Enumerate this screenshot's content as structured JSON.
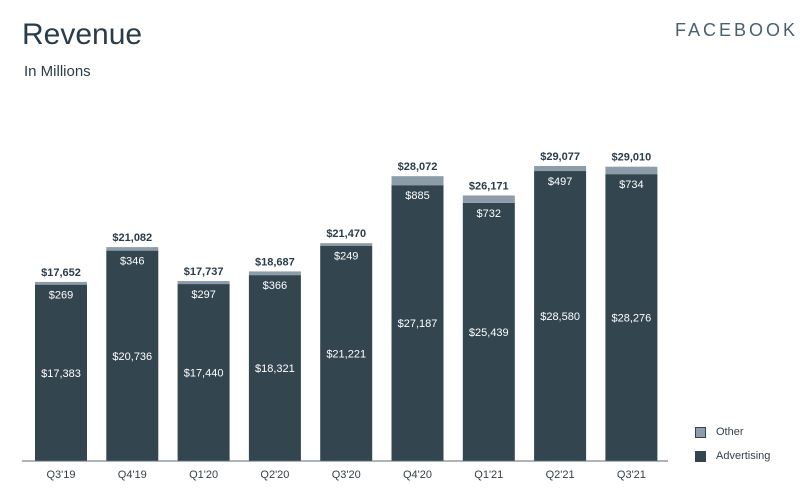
{
  "header": {
    "title": "Revenue",
    "subtitle": "In Millions",
    "brand": "FACEBOOK"
  },
  "colors": {
    "advertising": "#33454f",
    "other": "#8c9ca8",
    "axis": "#5b6b76"
  },
  "legend": {
    "items": [
      {
        "label": "Other",
        "color": "#8c9ca8"
      },
      {
        "label": "Advertising",
        "color": "#33454f"
      }
    ]
  },
  "chart_data": {
    "type": "bar",
    "stacked": true,
    "categories": [
      "Q3'19",
      "Q4'19",
      "Q1'20",
      "Q2'20",
      "Q3'20",
      "Q4'20",
      "Q1'21",
      "Q2'21",
      "Q3'21"
    ],
    "series": [
      {
        "name": "Advertising",
        "values": [
          17383,
          20736,
          17440,
          18321,
          21221,
          27187,
          25439,
          28580,
          28276
        ],
        "labels": [
          "$17,383",
          "$20,736",
          "$17,440",
          "$18,321",
          "$21,221",
          "$27,187",
          "$25,439",
          "$28,580",
          "$28,276"
        ]
      },
      {
        "name": "Other",
        "values": [
          269,
          346,
          297,
          366,
          249,
          885,
          732,
          497,
          734
        ],
        "labels": [
          "$269",
          "$346",
          "$297",
          "$366",
          "$249",
          "$885",
          "$732",
          "$497",
          "$734"
        ]
      }
    ],
    "totals": [
      17652,
      21082,
      17737,
      18687,
      21470,
      28072,
      26171,
      29077,
      29010
    ],
    "total_labels": [
      "$17,652",
      "$21,082",
      "$17,737",
      "$18,687",
      "$21,470",
      "$28,072",
      "$26,171",
      "$29,077",
      "$29,010"
    ],
    "ylim": [
      0,
      29077
    ],
    "legend_position": "bottom-right"
  }
}
